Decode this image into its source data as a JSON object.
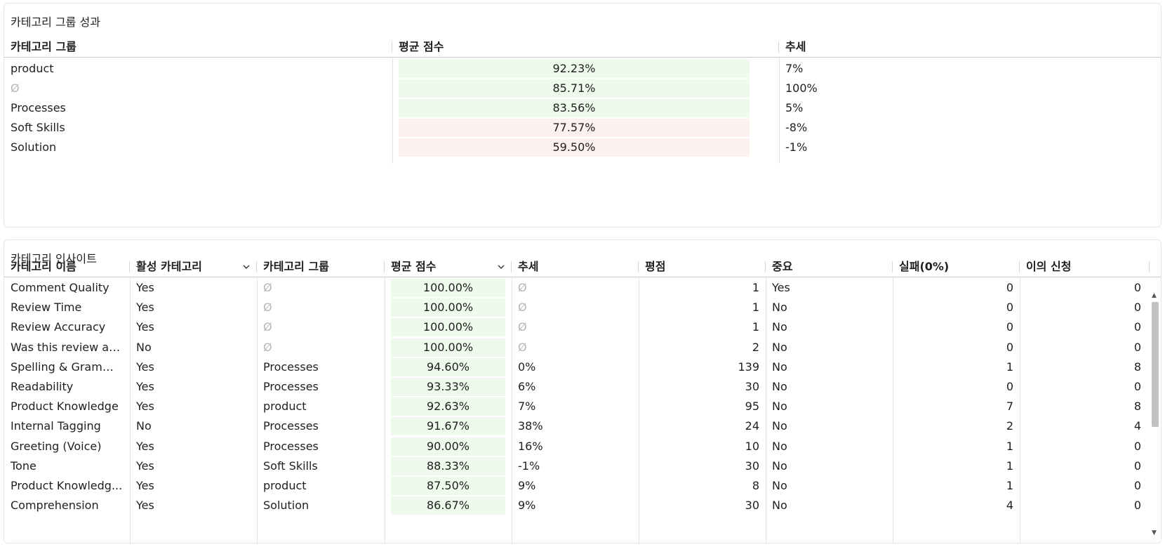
{
  "category_group_performance": {
    "title": "카테고리 그룹 성과",
    "headers": [
      "카테고리 그룹",
      "평균 점수",
      "추세"
    ],
    "rows": [
      {
        "group": "product",
        "avg_score": "92.23%",
        "trend": "7%",
        "status": "good"
      },
      {
        "group": "Ø",
        "avg_score": "85.71%",
        "trend": "100%",
        "status": "good",
        "group_null": true
      },
      {
        "group": "Processes",
        "avg_score": "83.56%",
        "trend": "5%",
        "status": "good"
      },
      {
        "group": "Soft Skills",
        "avg_score": "77.57%",
        "trend": "-8%",
        "status": "bad"
      },
      {
        "group": "Solution",
        "avg_score": "59.50%",
        "trend": "-1%",
        "status": "bad"
      }
    ]
  },
  "category_insights": {
    "title": "카테고리 인사이트",
    "headers": [
      "카테고리 이름",
      "활성 카테고리",
      "카테고리 그룹",
      "평균 점수",
      "추세",
      "평점",
      "중요",
      "실패(0%)",
      "이의 신청"
    ],
    "dropdown_headers": [
      "활성 카테고리",
      "평균 점수"
    ],
    "rows": [
      {
        "name": "Comment Quality",
        "active": "Yes",
        "group": "Ø",
        "avg": "100.00%",
        "trend": "Ø",
        "ratings": "1",
        "critical": "Yes",
        "fail": "0",
        "disputes": "0"
      },
      {
        "name": "Review Time",
        "active": "Yes",
        "group": "Ø",
        "avg": "100.00%",
        "trend": "Ø",
        "ratings": "1",
        "critical": "No",
        "fail": "0",
        "disputes": "0"
      },
      {
        "name": "Review Accuracy",
        "active": "Yes",
        "group": "Ø",
        "avg": "100.00%",
        "trend": "Ø",
        "ratings": "1",
        "critical": "No",
        "fail": "0",
        "disputes": "0"
      },
      {
        "name": "Was this review ac...",
        "active": "No",
        "group": "Ø",
        "avg": "100.00%",
        "trend": "Ø",
        "ratings": "2",
        "critical": "No",
        "fail": "0",
        "disputes": "0"
      },
      {
        "name": "Spelling & Grammar",
        "active": "Yes",
        "group": "Processes",
        "avg": "94.60%",
        "trend": "0%",
        "ratings": "139",
        "critical": "No",
        "fail": "1",
        "disputes": "8"
      },
      {
        "name": "Readability",
        "active": "Yes",
        "group": "Processes",
        "avg": "93.33%",
        "trend": "6%",
        "ratings": "30",
        "critical": "No",
        "fail": "0",
        "disputes": "0"
      },
      {
        "name": "Product Knowledge",
        "active": "Yes",
        "group": "product",
        "avg": "92.63%",
        "trend": "7%",
        "ratings": "95",
        "critical": "No",
        "fail": "7",
        "disputes": "8"
      },
      {
        "name": "Internal Tagging",
        "active": "No",
        "group": "Processes",
        "avg": "91.67%",
        "trend": "38%",
        "ratings": "24",
        "critical": "No",
        "fail": "2",
        "disputes": "4"
      },
      {
        "name": "Greeting (Voice)",
        "active": "Yes",
        "group": "Processes",
        "avg": "90.00%",
        "trend": "16%",
        "ratings": "10",
        "critical": "No",
        "fail": "1",
        "disputes": "0"
      },
      {
        "name": "Tone",
        "active": "Yes",
        "group": "Soft Skills",
        "avg": "88.33%",
        "trend": "-1%",
        "ratings": "30",
        "critical": "No",
        "fail": "1",
        "disputes": "0"
      },
      {
        "name": "Product Knowledg...",
        "active": "Yes",
        "group": "product",
        "avg": "87.50%",
        "trend": "9%",
        "ratings": "8",
        "critical": "No",
        "fail": "1",
        "disputes": "0"
      },
      {
        "name": "Comprehension",
        "active": "Yes",
        "group": "Solution",
        "avg": "86.67%",
        "trend": "9%",
        "ratings": "30",
        "critical": "No",
        "fail": "4",
        "disputes": "0"
      }
    ]
  },
  "colors": {
    "good_bg": "#eefaec",
    "bad_bg": "#fdf1ef",
    "null_text": "#b5b5b5"
  },
  "icons": {
    "dropdown": "chevron-down-icon",
    "scroll_up": "caret-up-icon",
    "scroll_down": "caret-down-icon"
  }
}
